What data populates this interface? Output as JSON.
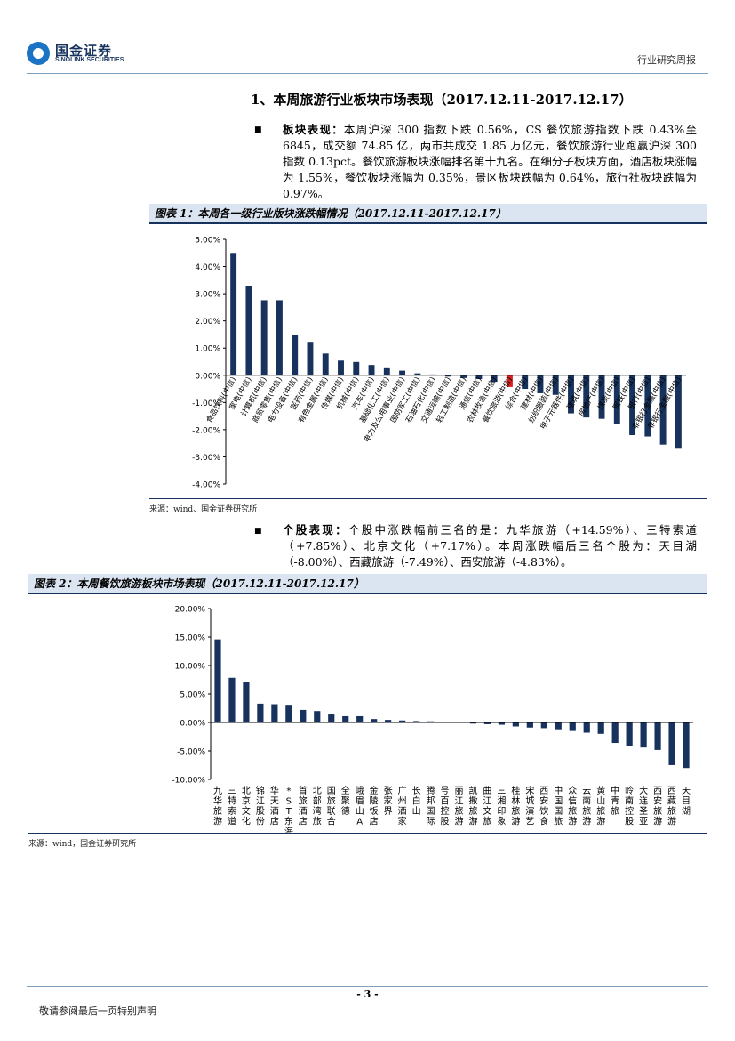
{
  "header": {
    "logo_cn": "国金证券",
    "logo_en": "SINOLINK SECURITIES",
    "right": "行业研究周报"
  },
  "section": {
    "title": "1、本周旅游行业板块市场表现（2017.12.11-2017.12.17）"
  },
  "para1": {
    "label": "板块表现：",
    "text": "本周沪深 300 指数下跌 0.56%，CS 餐饮旅游指数下跌 0.43%至 6845，成交额 74.85 亿，两市共成交 1.85 万亿元，餐饮旅游行业跑赢沪深 300 指数 0.13pct。餐饮旅游板块涨幅排名第十九名。在细分子板块方面，酒店板块涨幅为 1.55%，餐饮板块涨幅为 0.35%，景区板块跌幅为 0.64%，旅行社板块跌幅为 0.97%。"
  },
  "fig1": {
    "title": "图表 1：本周各一级行业版块涨跌幅情况（2017.12.11-2017.12.17）",
    "source": "来源：wind、国金证券研究所"
  },
  "para2": {
    "label": "个股表现：",
    "text": "个股中涨跌幅前三名的是：九华旅游（+14.59%）、三特索道（+7.85%）、北京文化（+7.17%）。本周涨跌幅后三名个股为：天目湖（-8.00%）、西藏旅游（-7.49%）、西安旅游（-4.83%）。"
  },
  "fig2": {
    "title": "图表 2：本周餐饮旅游板块市场表现（2017.12.11-2017.12.17）",
    "source": "来源：wind，国金证券研究所"
  },
  "footer": {
    "page": "- 3 -",
    "left": "敬请参阅最后一页特别声明"
  },
  "colors": {
    "bar": "#17325c",
    "highlight": "#e0201e"
  },
  "chart_data": [
    {
      "type": "bar",
      "ylim": [
        -4,
        5
      ],
      "yticks": [
        "5.00%",
        "4.00%",
        "3.00%",
        "2.00%",
        "1.00%",
        "0.00%",
        "-1.00%",
        "-2.00%",
        "-3.00%",
        "-4.00%"
      ],
      "categories": [
        "食品饮料(中信)",
        "家电(中信)",
        "计算机(中信)",
        "商贸零售(中信)",
        "电力设备(中信)",
        "医药(中信)",
        "有色金属(中信)",
        "传媒(中信)",
        "机械(中信)",
        "汽车(中信)",
        "基础化工(中信)",
        "电力及公用事业(中信)",
        "国防军工(中信)",
        "石油石化(中信)",
        "交通运输(中信)",
        "轻工制造(中信)",
        "通信(中信)",
        "农林牧渔(中信)",
        "餐饮旅游(中信)",
        "综合(中信)",
        "建材(中信)",
        "纺织服装(中信)",
        "电子元器件(中信)",
        "建筑(中信)",
        "房地产(中信)",
        "煤炭(中信)",
        "钢铁(中信)",
        "银行(中信)",
        "非银行金融(中信)",
        "非银行金融(中信)"
      ],
      "values": [
        4.5,
        3.27,
        2.76,
        2.76,
        1.47,
        1.23,
        0.8,
        0.54,
        0.49,
        0.38,
        0.26,
        0.17,
        0.07,
        0.03,
        -0.05,
        -0.1,
        -0.14,
        -0.24,
        -0.43,
        -0.5,
        -0.66,
        -0.72,
        -1.4,
        -1.55,
        -1.6,
        -1.8,
        -2.2,
        -2.25,
        -2.55,
        -2.7
      ],
      "highlight_index": 18
    },
    {
      "type": "bar",
      "ylim": [
        -10,
        20
      ],
      "yticks": [
        "20.00%",
        "15.00%",
        "10.00%",
        "5.00%",
        "0.00%",
        "-5.00%",
        "-10.00%"
      ],
      "categories": [
        "九华旅游",
        "三特索道",
        "北京文化",
        "锦江股份",
        "华天酒店",
        "*ST东海A",
        "首旅酒店",
        "北部湾旅",
        "国旅联合",
        "全聚德",
        "峨眉山A",
        "金陵饭店",
        "张家界",
        "广州酒家",
        "长白山",
        "腾邦国际",
        "号百控股",
        "丽江旅游",
        "凯撒旅游",
        "曲江文旅",
        "三湘印象",
        "桂林旅游",
        "宋城演艺",
        "西安饮食",
        "中国国旅",
        "众信旅游",
        "云南旅游",
        "黄山旅游",
        "中青旅",
        "岭南控股",
        "大连圣亚",
        "西安旅游",
        "西藏旅游",
        "天目湖"
      ],
      "values": [
        14.59,
        7.85,
        7.17,
        3.3,
        3.2,
        3.1,
        2.2,
        2.0,
        1.4,
        1.1,
        1.1,
        0.6,
        0.45,
        0.35,
        0.25,
        0.2,
        0.1,
        0.05,
        -0.2,
        -0.3,
        -0.4,
        -0.7,
        -0.9,
        -1.0,
        -1.2,
        -1.5,
        -1.8,
        -2.0,
        -3.6,
        -4.1,
        -4.4,
        -4.83,
        -7.49,
        -8.0
      ]
    }
  ]
}
